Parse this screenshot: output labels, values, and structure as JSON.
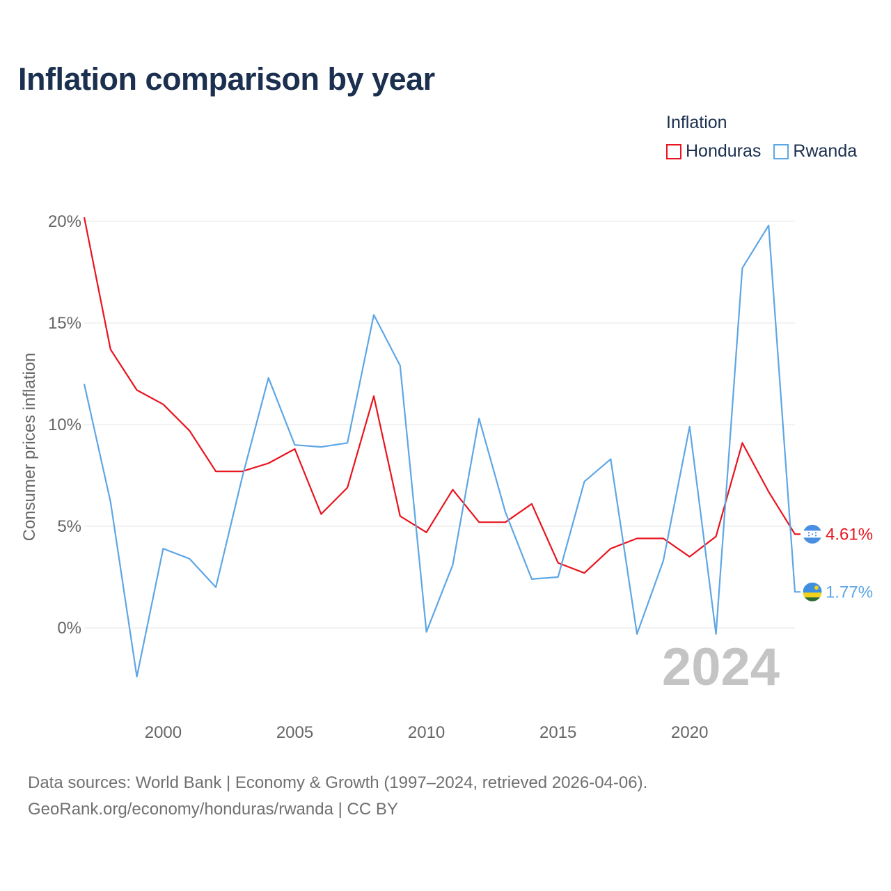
{
  "title": "Inflation comparison by year",
  "legend": {
    "title": "Inflation",
    "items": [
      {
        "label": "Honduras",
        "color": "#e8141e"
      },
      {
        "label": "Rwanda",
        "color": "#5ea6e5"
      }
    ]
  },
  "footer": {
    "line1": "Data sources: World Bank | Economy & Growth (1997–2024, retrieved 2026-04-06).",
    "line2": "GeoRank.org/economy/honduras/rwanda | CC BY"
  },
  "chart_data": {
    "type": "line",
    "title": "Inflation comparison by year",
    "xlabel": "",
    "ylabel": "Consumer prices inflation",
    "x": [
      1997,
      1998,
      1999,
      2000,
      2001,
      2002,
      2003,
      2004,
      2005,
      2006,
      2007,
      2008,
      2009,
      2010,
      2011,
      2012,
      2013,
      2014,
      2015,
      2016,
      2017,
      2018,
      2019,
      2020,
      2021,
      2022,
      2023,
      2024
    ],
    "xlim": [
      1997,
      2024
    ],
    "ylim": [
      -4,
      20
    ],
    "yticks": [
      0,
      5,
      10,
      15,
      20
    ],
    "ytick_labels": [
      "0%",
      "5%",
      "10%",
      "15%",
      "20%"
    ],
    "xticks": [
      2000,
      2005,
      2010,
      2015,
      2020
    ],
    "xtick_labels": [
      "2000",
      "2005",
      "2010",
      "2015",
      "2020"
    ],
    "grid": true,
    "year_label": "2024",
    "series": [
      {
        "name": "Honduras",
        "color": "#e8141e",
        "end_label": "4.61%",
        "values": [
          20.2,
          13.7,
          11.7,
          11.0,
          9.7,
          7.7,
          7.7,
          8.1,
          8.8,
          5.6,
          6.9,
          11.4,
          5.5,
          4.7,
          6.8,
          5.2,
          5.2,
          6.1,
          3.2,
          2.7,
          3.9,
          4.4,
          4.4,
          3.5,
          4.5,
          9.1,
          6.7,
          4.61
        ]
      },
      {
        "name": "Rwanda",
        "color": "#5ea6e5",
        "end_label": "1.77%",
        "values": [
          12.0,
          6.2,
          -2.4,
          3.9,
          3.4,
          2.0,
          7.4,
          12.3,
          9.0,
          8.9,
          9.1,
          15.4,
          12.9,
          -0.2,
          3.1,
          10.3,
          5.7,
          2.4,
          2.5,
          7.2,
          8.3,
          -0.3,
          3.3,
          9.9,
          -0.3,
          17.7,
          19.8,
          1.77
        ]
      }
    ]
  }
}
